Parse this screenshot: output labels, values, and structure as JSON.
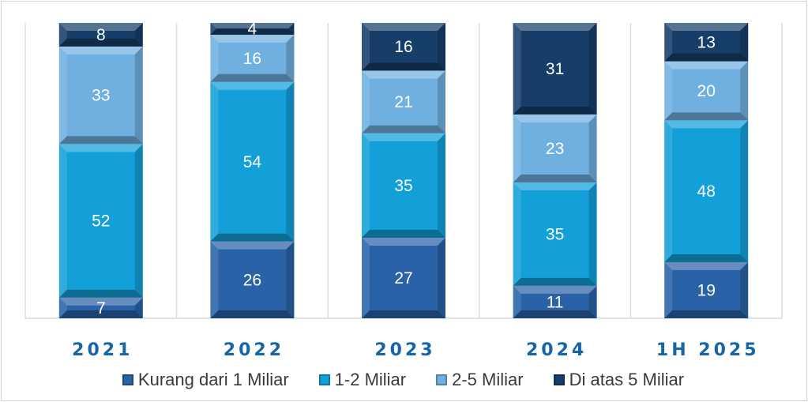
{
  "chart_data": {
    "type": "bar",
    "stacked": true,
    "percent_stacked": true,
    "categories": [
      "2021",
      "2022",
      "2023",
      "2024",
      "1H 2025"
    ],
    "series": [
      {
        "name": "Kurang dari 1 Miliar",
        "color": "#2a62a8",
        "values": [
          7,
          26,
          27,
          11,
          19
        ]
      },
      {
        "name": "1-2 Miliar",
        "color": "#13a0d8",
        "values": [
          52,
          54,
          35,
          35,
          48
        ]
      },
      {
        "name": "2-5 Miliar",
        "color": "#6fb0e0",
        "values": [
          33,
          16,
          21,
          23,
          20
        ]
      },
      {
        "name": "Di atas 5 Miliar",
        "color": "#173e69",
        "values": [
          8,
          4,
          16,
          31,
          13
        ]
      }
    ],
    "title": "",
    "xlabel": "",
    "ylabel": "",
    "ylim": [
      0,
      100
    ],
    "grid": false,
    "legend_position": "bottom"
  }
}
